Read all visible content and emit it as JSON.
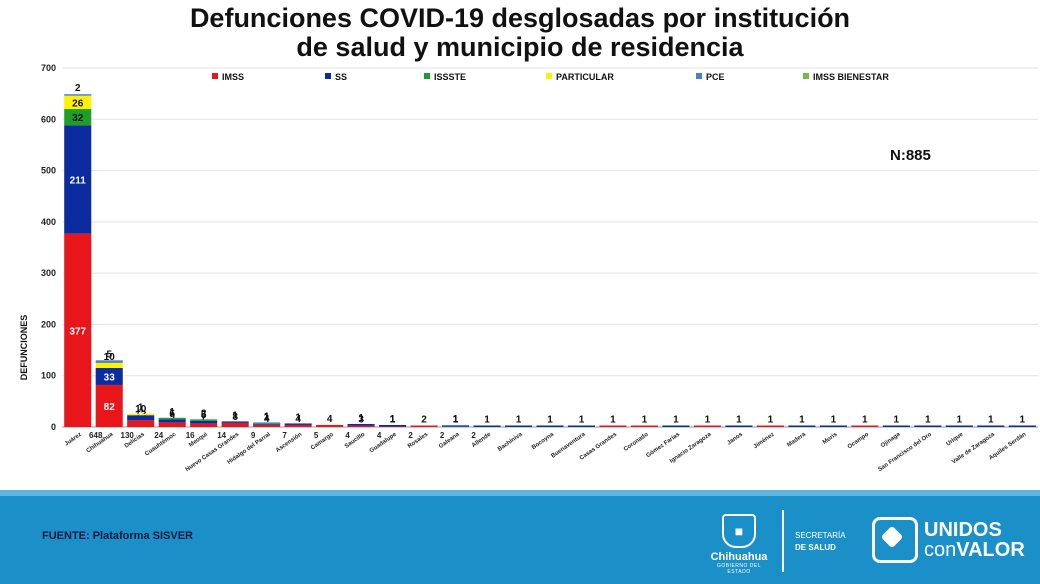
{
  "title_line1": "Defunciones COVID-19 desglosadas por institución",
  "title_line2": "de salud y municipio de residencia",
  "n_label": "N:885",
  "source": "FUENTE: Plataforma SISVER",
  "branding": {
    "state_name": "Chihuahua",
    "state_sub": "GOBIERNO DEL ESTADO",
    "secretaria_line1": "SECRETARÍA",
    "secretaria_line2": "DE SALUD",
    "slogan_line1": "UNIDOS",
    "slogan_line2a": "con",
    "slogan_line2b": "VALOR"
  },
  "chart_data": {
    "type": "bar",
    "stacked": true,
    "ylabel": "DEFUNCIONES",
    "ylim": [
      0,
      700
    ],
    "yticks": [
      0,
      100,
      200,
      300,
      400,
      500,
      600,
      700
    ],
    "grid": true,
    "legend_position": "top",
    "categories": [
      "Juárez",
      "Chihuahua",
      "Delicias",
      "Cuauhtémoc",
      "Meoqui",
      "Nuevo Casas Grandes",
      "Hidalgo del Parral",
      "Ascensión",
      "Camargo",
      "Saucillo",
      "Guadalupe",
      "Rosales",
      "Galeana",
      "Allende",
      "Bachíniva",
      "Bocoyna",
      "Buenaventura",
      "Casas Grandes",
      "Coronado",
      "Gómez Farías",
      "Ignacio Zaragoza",
      "Janos",
      "Jiménez",
      "Madera",
      "Moris",
      "Ocampo",
      "Ojinaga",
      "San Francisco del Oro",
      "Urique",
      "Valle de Zaragoza",
      "Aquiles Serdán"
    ],
    "totals": [
      "648",
      "130",
      "24",
      "16",
      "14",
      "9",
      "7",
      "5",
      "4",
      "4",
      "2",
      "2",
      "2",
      "",
      "",
      "",
      "",
      "",
      "",
      "",
      "",
      "",
      "",
      "",
      "",
      "",
      "",
      "",
      "",
      "",
      ""
    ],
    "series": [
      {
        "name": "IMSS",
        "color": "#e8151b",
        "values": [
          377,
          82,
          13,
          9,
          7,
          8,
          4,
          4,
          4,
          3,
          1,
          2,
          0,
          0,
          0,
          0,
          0,
          1,
          1,
          0,
          1,
          0,
          1,
          0,
          0,
          1,
          0,
          0,
          0,
          0,
          0
        ],
        "labels": [
          "377",
          "82",
          "13",
          "9",
          "7",
          "8",
          "4",
          "4",
          "4",
          "3",
          "1",
          "2",
          "",
          "",
          "",
          "",
          "",
          "1",
          "1",
          "",
          "1",
          "",
          "1",
          "",
          "",
          "1",
          "",
          "",
          "",
          "",
          ""
        ]
      },
      {
        "name": "SS",
        "color": "#0b2c9f",
        "values": [
          211,
          33,
          10,
          6,
          5,
          1,
          1,
          1,
          0,
          1,
          1,
          0,
          1,
          1,
          1,
          1,
          1,
          0,
          0,
          1,
          0,
          1,
          0,
          1,
          1,
          0,
          1,
          1,
          1,
          1,
          1
        ],
        "labels": [
          "211",
          "33",
          "10",
          "6",
          "5",
          "1",
          "1",
          "1",
          "",
          "1",
          "1",
          "",
          "1",
          "1",
          "1",
          "1",
          "1",
          "",
          "",
          "1",
          "",
          "1",
          "",
          "1",
          "1",
          "",
          "1",
          "1",
          "1",
          "1",
          "1"
        ]
      },
      {
        "name": "ISSSTE",
        "color": "#1e9e2b",
        "values": [
          32,
          0,
          0,
          1,
          2,
          0,
          1,
          0,
          0,
          0,
          0,
          0,
          0,
          0,
          0,
          0,
          0,
          0,
          0,
          0,
          0,
          0,
          0,
          0,
          0,
          0,
          0,
          0,
          0,
          0,
          0
        ],
        "labels": [
          "32",
          "",
          "",
          "1",
          "2",
          "",
          "1",
          "",
          "",
          "",
          "",
          "",
          "",
          "",
          "",
          "",
          "",
          "",
          "",
          "",
          "",
          "",
          "",
          "",
          "",
          "",
          "",
          "",
          "",
          "",
          ""
        ]
      },
      {
        "name": "PARTICULAR",
        "color": "#fff200",
        "values": [
          26,
          10,
          1,
          0,
          0,
          0,
          0,
          0,
          0,
          0,
          0,
          0,
          0,
          0,
          0,
          0,
          0,
          0,
          0,
          0,
          0,
          0,
          0,
          0,
          0,
          0,
          0,
          0,
          0,
          0,
          0
        ],
        "labels": [
          "26",
          "10",
          "1",
          "",
          "",
          "",
          "",
          "",
          "",
          "",
          "",
          "",
          "",
          "",
          "",
          "",
          "",
          "",
          "",
          "",
          "",
          "",
          "",
          "",
          "",
          "",
          "",
          "",
          "",
          "",
          ""
        ]
      },
      {
        "name": "PCE",
        "color": "#4f7fc4",
        "values": [
          2,
          5,
          0,
          0,
          0,
          0,
          1,
          0,
          0,
          0,
          0,
          0,
          1,
          0,
          0,
          0,
          0,
          0,
          0,
          0,
          0,
          0,
          0,
          0,
          0,
          0,
          0,
          0,
          0,
          0,
          0
        ],
        "labels": [
          "2",
          "5",
          "",
          "",
          "",
          "",
          "1",
          "",
          "",
          "",
          "",
          "",
          "1",
          "",
          "",
          "",
          "",
          "",
          "",
          "",
          "",
          "",
          "",
          "",
          "",
          "",
          "",
          "",
          "",
          "",
          ""
        ]
      },
      {
        "name": "IMSS BIENESTAR",
        "color": "#7ab648",
        "values": [
          0,
          0,
          0,
          0,
          0,
          0,
          0,
          0,
          0,
          0,
          0,
          0,
          0,
          0,
          0,
          0,
          0,
          0,
          0,
          0,
          0,
          0,
          0,
          0,
          0,
          0,
          0,
          0,
          0,
          0,
          0
        ],
        "labels": [
          "",
          "",
          "",
          "",
          "",
          "",
          "",
          "",
          "",
          "",
          "",
          "",
          "",
          "",
          "",
          "",
          "",
          "",
          "",
          "",
          "",
          "",
          "",
          "",
          "",
          "",
          "",
          "",
          "",
          "",
          ""
        ]
      }
    ]
  }
}
